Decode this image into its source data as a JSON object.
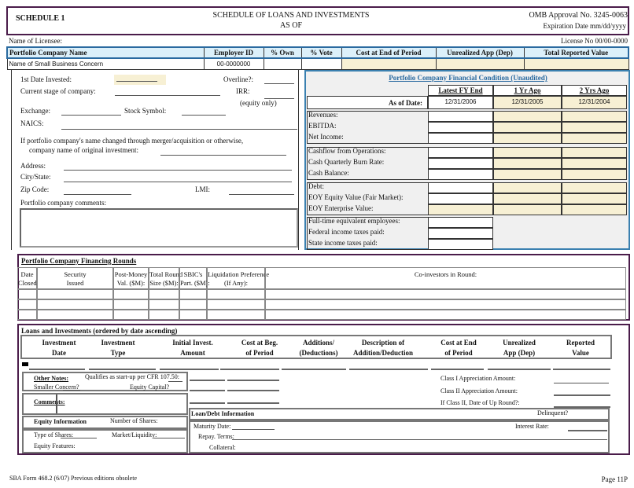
{
  "header": {
    "schedule": "SCHEDULE 1",
    "title": "SCHEDULE OF LOANS AND INVESTMENTS",
    "as_of": "AS OF",
    "omb": "OMB Approval No. 3245-0063",
    "expiration": "Expiration Date mm/dd/yyyy",
    "licensee_label": "Name of Licensee:",
    "license_no": "License No  00/00-0000"
  },
  "summary": {
    "columns": [
      "Portfolio Company Name",
      "Employer ID",
      "% Own",
      "% Vote",
      "Cost at End of Period",
      "Unrealized App (Dep)",
      "Total Reported Value"
    ],
    "row": [
      "Name of Small Business Concern",
      "00-0000000",
      "",
      "",
      "",
      "",
      ""
    ]
  },
  "company": {
    "first_date": "1st Date Invested:",
    "overline": "Overline?:",
    "stage": "Current stage of company:",
    "irr": "IRR:",
    "irr_note": "(equity only)",
    "exchange": "Exchange:",
    "symbol": "Stock Symbol:",
    "naics": "NAICS:",
    "name_change1": "If portfolio company's name changed through merger/acquisition or otherwise,",
    "name_change2": "company name of original investment:",
    "address": "Address:",
    "city": "City/State:",
    "zip": "Zip Code:",
    "lmi": "LMI:",
    "comments": "Portfolio company comments:"
  },
  "financial": {
    "title": "Portfolio Company Financial Condition (Unaudited)",
    "columns": [
      "Latest FY End",
      "1 Yr Ago",
      "2 Yrs Ago"
    ],
    "as_of_label": "As of Date:",
    "dates": [
      "12/31/2006",
      "12/31/2005",
      "12/31/2004"
    ],
    "groups": [
      [
        "Revenues:",
        "EBITDA:",
        "Net Income:"
      ],
      [
        "Cashflow from Operations:",
        "Cash Quarterly Burn Rate:",
        "Cash Balance:"
      ],
      [
        "Debt:",
        "EOY Equity Value (Fair Market):",
        "EOY Enterprise Value:"
      ],
      [
        "Full-time equivalent employees:",
        "Federal income taxes paid:",
        "State income taxes paid:"
      ]
    ]
  },
  "rounds": {
    "title": "Portfolio Company Financing Rounds",
    "columns": [
      [
        "Date",
        "Closed"
      ],
      [
        "Security",
        "Issued"
      ],
      [
        "Post-Money",
        "Val. ($M):"
      ],
      [
        "Total Round",
        "Size ($M):"
      ],
      [
        "SBIC's",
        "Part. ($M):"
      ],
      [
        "Liquidation Preference",
        "(If Any):"
      ],
      [
        "",
        "Co-investors in Round:"
      ]
    ]
  },
  "loans": {
    "title": "Loans and Investments (ordered by date ascending)",
    "columns": [
      [
        "Investment",
        "Date"
      ],
      [
        "Investment",
        "Type"
      ],
      [
        "Initial Invest.",
        "Amount"
      ],
      [
        "Cost at Beg.",
        "of Period"
      ],
      [
        "Additions/",
        "(Deductions)"
      ],
      [
        "Description of",
        "Addition/Deduction"
      ],
      [
        "Cost at End",
        "of Period"
      ],
      [
        "Unrealized",
        "App (Dep)"
      ],
      [
        "Reported",
        "Value"
      ]
    ],
    "other_notes": "Other Notes:",
    "startup": "Qualifies as start-up per CFR 107.50:",
    "smaller": "Smaller Concern?",
    "equity_capital": "Equity Capital?",
    "comments": "Comments:",
    "equity_info": "Equity Information",
    "num_shares": "Number of Shares:",
    "type_shares": "Type of Shares:",
    "market": "Market/Liquidity:",
    "features": "Equity Features:",
    "class1": "Class I Appreciation Amount:",
    "class2": "Class II Appreciation Amount:",
    "class2_date": "If Class II, Date of Up Round?:",
    "loan_info": "Loan/Debt Information",
    "delinquent": "Delinquent?",
    "maturity": "Maturity Date:",
    "interest": "Interest Rate:",
    "repay": "Repay. Terms:",
    "collateral": "Collateral:"
  },
  "footer": {
    "form": "SBA Form 468.2 (6/07) Previous editions obsolete",
    "page": "Page 11P"
  }
}
